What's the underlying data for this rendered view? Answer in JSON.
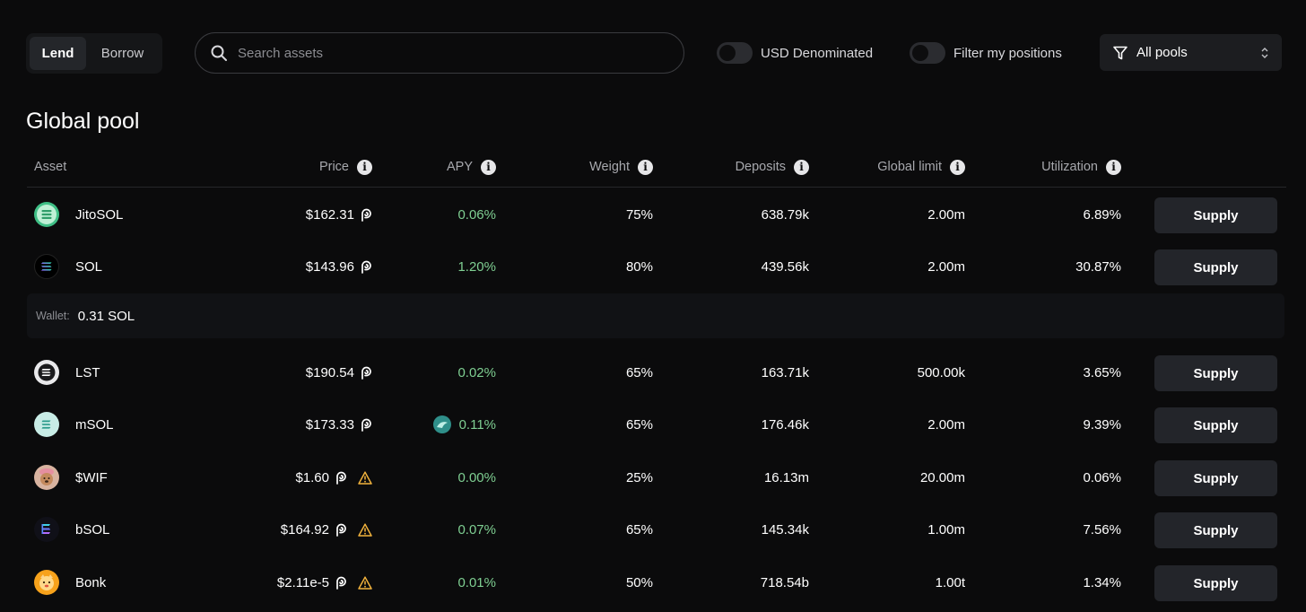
{
  "topbar": {
    "mode": {
      "lend": "Lend",
      "borrow": "Borrow",
      "active": "lend"
    },
    "search": {
      "placeholder": "Search assets",
      "value": ""
    },
    "toggles": [
      {
        "label": "USD Denominated",
        "on": false
      },
      {
        "label": "Filter my positions",
        "on": false
      }
    ],
    "pool_select": {
      "value": "All pools",
      "icon": "filter-icon"
    }
  },
  "section": {
    "title": "Global pool"
  },
  "table": {
    "headers": {
      "asset": "Asset",
      "price": "Price",
      "apy": "APY",
      "weight": "Weight",
      "deposits": "Deposits",
      "global_limit": "Global limit",
      "utilization": "Utilization"
    },
    "supply_label": "Supply",
    "rows": [
      {
        "asset": "JitoSOL",
        "icon": "jitosol-icon",
        "price": "$162.31",
        "warning": false,
        "apy": "0.06%",
        "apy_badge": false,
        "weight": "75%",
        "deposits": "638.79k",
        "global_limit": "2.00m",
        "utilization": "6.89%"
      },
      {
        "asset": "SOL",
        "icon": "sol-icon",
        "price": "$143.96",
        "warning": false,
        "apy": "1.20%",
        "apy_badge": false,
        "weight": "80%",
        "deposits": "439.56k",
        "global_limit": "2.00m",
        "utilization": "30.87%"
      },
      {
        "asset": "LST",
        "icon": "lst-icon",
        "price": "$190.54",
        "warning": false,
        "apy": "0.02%",
        "apy_badge": false,
        "weight": "65%",
        "deposits": "163.71k",
        "global_limit": "500.00k",
        "utilization": "3.65%"
      },
      {
        "asset": "mSOL",
        "icon": "msol-icon",
        "price": "$173.33",
        "warning": false,
        "apy": "0.11%",
        "apy_badge": true,
        "weight": "65%",
        "deposits": "176.46k",
        "global_limit": "2.00m",
        "utilization": "9.39%"
      },
      {
        "asset": "$WIF",
        "icon": "wif-icon",
        "price": "$1.60",
        "warning": true,
        "apy": "0.00%",
        "apy_badge": false,
        "weight": "25%",
        "deposits": "16.13m",
        "global_limit": "20.00m",
        "utilization": "0.06%"
      },
      {
        "asset": "bSOL",
        "icon": "bsol-icon",
        "price": "$164.92",
        "warning": true,
        "apy": "0.07%",
        "apy_badge": false,
        "weight": "65%",
        "deposits": "145.34k",
        "global_limit": "1.00m",
        "utilization": "7.56%"
      },
      {
        "asset": "Bonk",
        "icon": "bonk-icon",
        "price": "$2.11e-5",
        "warning": true,
        "apy": "0.01%",
        "apy_badge": false,
        "weight": "50%",
        "deposits": "718.54b",
        "global_limit": "1.00t",
        "utilization": "1.34%"
      }
    ],
    "wallet": {
      "label": "Wallet:",
      "value": "0.31 SOL"
    }
  },
  "colors": {
    "background": "#0b0b0c",
    "apy_green": "#7fcf92",
    "warning": "#f2b33d",
    "button": "#23252a"
  }
}
